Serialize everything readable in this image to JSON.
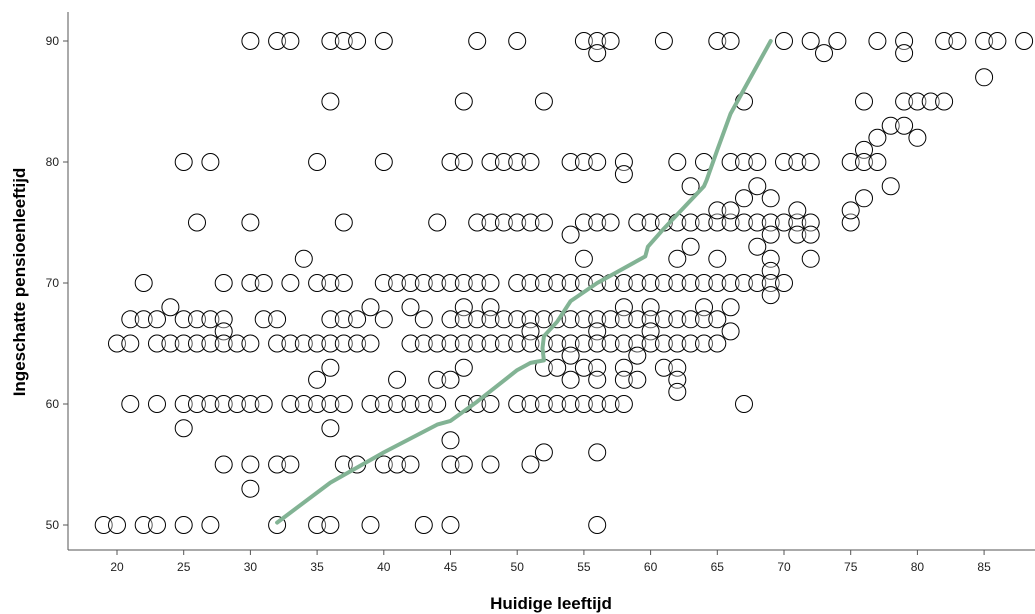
{
  "chart_data": {
    "type": "scatter",
    "title": "",
    "xlabel": "Huidige leeftijd",
    "ylabel": "Ingeschatte pensioenleeftijd",
    "xlim": [
      15,
      88
    ],
    "ylim": [
      48.5,
      92.5
    ],
    "xticks": [
      20,
      25,
      30,
      35,
      40,
      45,
      50,
      55,
      60,
      65,
      70,
      75,
      80,
      85
    ],
    "yticks": [
      50,
      60,
      70,
      80,
      90
    ],
    "grid": false,
    "legend": "none",
    "marker_color": "#000000",
    "fit_line_color": "#82b394",
    "points": [
      [
        30,
        90
      ],
      [
        32,
        90
      ],
      [
        33,
        90
      ],
      [
        36,
        90
      ],
      [
        37,
        90
      ],
      [
        38,
        90
      ],
      [
        40,
        90
      ],
      [
        47,
        90
      ],
      [
        50,
        90
      ],
      [
        55,
        90
      ],
      [
        56,
        90
      ],
      [
        57,
        90
      ],
      [
        61,
        90
      ],
      [
        65,
        90
      ],
      [
        66,
        90
      ],
      [
        70,
        90
      ],
      [
        72,
        90
      ],
      [
        74,
        90
      ],
      [
        77,
        90
      ],
      [
        79,
        90
      ],
      [
        82,
        90
      ],
      [
        83,
        90
      ],
      [
        85,
        90
      ],
      [
        86,
        90
      ],
      [
        88,
        90
      ],
      [
        56,
        89
      ],
      [
        73,
        89
      ],
      [
        79,
        89
      ],
      [
        85,
        87
      ],
      [
        36,
        85
      ],
      [
        46,
        85
      ],
      [
        52,
        85
      ],
      [
        67,
        85
      ],
      [
        76,
        85
      ],
      [
        79,
        85
      ],
      [
        80,
        85
      ],
      [
        81,
        85
      ],
      [
        82,
        85
      ],
      [
        78,
        83
      ],
      [
        79,
        83
      ],
      [
        77,
        82
      ],
      [
        80,
        82
      ],
      [
        76,
        81
      ],
      [
        25,
        80
      ],
      [
        27,
        80
      ],
      [
        35,
        80
      ],
      [
        40,
        80
      ],
      [
        45,
        80
      ],
      [
        46,
        80
      ],
      [
        48,
        80
      ],
      [
        49,
        80
      ],
      [
        50,
        80
      ],
      [
        51,
        80
      ],
      [
        54,
        80
      ],
      [
        55,
        80
      ],
      [
        56,
        80
      ],
      [
        58,
        80
      ],
      [
        62,
        80
      ],
      [
        64,
        80
      ],
      [
        66,
        80
      ],
      [
        67,
        80
      ],
      [
        68,
        80
      ],
      [
        70,
        80
      ],
      [
        71,
        80
      ],
      [
        72,
        80
      ],
      [
        75,
        80
      ],
      [
        76,
        80
      ],
      [
        77,
        80
      ],
      [
        58,
        79
      ],
      [
        63,
        78
      ],
      [
        68,
        78
      ],
      [
        78,
        78
      ],
      [
        67,
        77
      ],
      [
        69,
        77
      ],
      [
        76,
        77
      ],
      [
        26,
        75
      ],
      [
        30,
        75
      ],
      [
        37,
        75
      ],
      [
        44,
        75
      ],
      [
        47,
        75
      ],
      [
        48,
        75
      ],
      [
        49,
        75
      ],
      [
        50,
        75
      ],
      [
        51,
        75
      ],
      [
        52,
        75
      ],
      [
        55,
        75
      ],
      [
        56,
        75
      ],
      [
        57,
        75
      ],
      [
        59,
        75
      ],
      [
        60,
        75
      ],
      [
        61,
        75
      ],
      [
        62,
        75
      ],
      [
        63,
        75
      ],
      [
        64,
        75
      ],
      [
        65,
        75
      ],
      [
        66,
        75
      ],
      [
        67,
        75
      ],
      [
        68,
        75
      ],
      [
        69,
        75
      ],
      [
        70,
        75
      ],
      [
        71,
        75
      ],
      [
        72,
        75
      ],
      [
        75,
        75
      ],
      [
        65,
        76
      ],
      [
        66,
        76
      ],
      [
        71,
        76
      ],
      [
        75,
        76
      ],
      [
        54,
        74
      ],
      [
        69,
        74
      ],
      [
        71,
        74
      ],
      [
        72,
        74
      ],
      [
        63,
        73
      ],
      [
        68,
        73
      ],
      [
        55,
        72
      ],
      [
        34,
        72
      ],
      [
        62,
        72
      ],
      [
        65,
        72
      ],
      [
        69,
        72
      ],
      [
        72,
        72
      ],
      [
        69,
        71
      ],
      [
        22,
        70
      ],
      [
        28,
        70
      ],
      [
        30,
        70
      ],
      [
        31,
        70
      ],
      [
        33,
        70
      ],
      [
        35,
        70
      ],
      [
        36,
        70
      ],
      [
        37,
        70
      ],
      [
        40,
        70
      ],
      [
        41,
        70
      ],
      [
        42,
        70
      ],
      [
        43,
        70
      ],
      [
        44,
        70
      ],
      [
        45,
        70
      ],
      [
        46,
        70
      ],
      [
        47,
        70
      ],
      [
        48,
        70
      ],
      [
        50,
        70
      ],
      [
        51,
        70
      ],
      [
        52,
        70
      ],
      [
        53,
        70
      ],
      [
        54,
        70
      ],
      [
        55,
        70
      ],
      [
        56,
        70
      ],
      [
        57,
        70
      ],
      [
        58,
        70
      ],
      [
        59,
        70
      ],
      [
        60,
        70
      ],
      [
        61,
        70
      ],
      [
        62,
        70
      ],
      [
        63,
        70
      ],
      [
        64,
        70
      ],
      [
        65,
        70
      ],
      [
        66,
        70
      ],
      [
        67,
        70
      ],
      [
        68,
        70
      ],
      [
        69,
        70
      ],
      [
        70,
        70
      ],
      [
        69,
        69
      ],
      [
        24,
        68
      ],
      [
        39,
        68
      ],
      [
        42,
        68
      ],
      [
        46,
        68
      ],
      [
        48,
        68
      ],
      [
        58,
        68
      ],
      [
        60,
        68
      ],
      [
        64,
        68
      ],
      [
        66,
        68
      ],
      [
        21,
        67
      ],
      [
        22,
        67
      ],
      [
        23,
        67
      ],
      [
        25,
        67
      ],
      [
        26,
        67
      ],
      [
        27,
        67
      ],
      [
        28,
        67
      ],
      [
        31,
        67
      ],
      [
        32,
        67
      ],
      [
        36,
        67
      ],
      [
        37,
        67
      ],
      [
        38,
        67
      ],
      [
        40,
        67
      ],
      [
        43,
        67
      ],
      [
        45,
        67
      ],
      [
        46,
        67
      ],
      [
        47,
        67
      ],
      [
        48,
        67
      ],
      [
        49,
        67
      ],
      [
        50,
        67
      ],
      [
        51,
        67
      ],
      [
        52,
        67
      ],
      [
        53,
        67
      ],
      [
        54,
        67
      ],
      [
        55,
        67
      ],
      [
        56,
        67
      ],
      [
        57,
        67
      ],
      [
        58,
        67
      ],
      [
        59,
        67
      ],
      [
        60,
        67
      ],
      [
        61,
        67
      ],
      [
        62,
        67
      ],
      [
        63,
        67
      ],
      [
        64,
        67
      ],
      [
        65,
        67
      ],
      [
        28,
        66
      ],
      [
        51,
        66
      ],
      [
        56,
        66
      ],
      [
        60,
        66
      ],
      [
        66,
        66
      ],
      [
        20,
        65
      ],
      [
        21,
        65
      ],
      [
        23,
        65
      ],
      [
        24,
        65
      ],
      [
        25,
        65
      ],
      [
        26,
        65
      ],
      [
        27,
        65
      ],
      [
        28,
        65
      ],
      [
        29,
        65
      ],
      [
        30,
        65
      ],
      [
        32,
        65
      ],
      [
        33,
        65
      ],
      [
        34,
        65
      ],
      [
        35,
        65
      ],
      [
        36,
        65
      ],
      [
        37,
        65
      ],
      [
        38,
        65
      ],
      [
        39,
        65
      ],
      [
        42,
        65
      ],
      [
        43,
        65
      ],
      [
        44,
        65
      ],
      [
        45,
        65
      ],
      [
        46,
        65
      ],
      [
        47,
        65
      ],
      [
        48,
        65
      ],
      [
        49,
        65
      ],
      [
        50,
        65
      ],
      [
        51,
        65
      ],
      [
        52,
        65
      ],
      [
        53,
        65
      ],
      [
        54,
        65
      ],
      [
        55,
        65
      ],
      [
        56,
        65
      ],
      [
        57,
        65
      ],
      [
        58,
        65
      ],
      [
        59,
        65
      ],
      [
        60,
        65
      ],
      [
        61,
        65
      ],
      [
        62,
        65
      ],
      [
        63,
        65
      ],
      [
        64,
        65
      ],
      [
        65,
        65
      ],
      [
        54,
        64
      ],
      [
        59,
        64
      ],
      [
        36,
        63
      ],
      [
        46,
        63
      ],
      [
        52,
        63
      ],
      [
        53,
        63
      ],
      [
        55,
        63
      ],
      [
        56,
        63
      ],
      [
        58,
        63
      ],
      [
        61,
        63
      ],
      [
        62,
        63
      ],
      [
        35,
        62
      ],
      [
        41,
        62
      ],
      [
        44,
        62
      ],
      [
        45,
        62
      ],
      [
        54,
        62
      ],
      [
        56,
        62
      ],
      [
        58,
        62
      ],
      [
        59,
        62
      ],
      [
        62,
        62
      ],
      [
        62,
        61
      ],
      [
        21,
        60
      ],
      [
        23,
        60
      ],
      [
        25,
        60
      ],
      [
        26,
        60
      ],
      [
        27,
        60
      ],
      [
        28,
        60
      ],
      [
        29,
        60
      ],
      [
        30,
        60
      ],
      [
        31,
        60
      ],
      [
        33,
        60
      ],
      [
        34,
        60
      ],
      [
        35,
        60
      ],
      [
        36,
        60
      ],
      [
        37,
        60
      ],
      [
        39,
        60
      ],
      [
        40,
        60
      ],
      [
        41,
        60
      ],
      [
        42,
        60
      ],
      [
        43,
        60
      ],
      [
        44,
        60
      ],
      [
        46,
        60
      ],
      [
        47,
        60
      ],
      [
        48,
        60
      ],
      [
        50,
        60
      ],
      [
        51,
        60
      ],
      [
        52,
        60
      ],
      [
        53,
        60
      ],
      [
        54,
        60
      ],
      [
        55,
        60
      ],
      [
        56,
        60
      ],
      [
        57,
        60
      ],
      [
        58,
        60
      ],
      [
        67,
        60
      ],
      [
        25,
        58
      ],
      [
        36,
        58
      ],
      [
        45,
        57
      ],
      [
        52,
        56
      ],
      [
        56,
        56
      ],
      [
        28,
        55
      ],
      [
        30,
        55
      ],
      [
        32,
        55
      ],
      [
        33,
        55
      ],
      [
        37,
        55
      ],
      [
        38,
        55
      ],
      [
        40,
        55
      ],
      [
        41,
        55
      ],
      [
        42,
        55
      ],
      [
        45,
        55
      ],
      [
        46,
        55
      ],
      [
        48,
        55
      ],
      [
        51,
        55
      ],
      [
        30,
        53
      ],
      [
        19,
        50
      ],
      [
        20,
        50
      ],
      [
        22,
        50
      ],
      [
        23,
        50
      ],
      [
        25,
        50
      ],
      [
        27,
        50
      ],
      [
        32,
        50
      ],
      [
        35,
        50
      ],
      [
        36,
        50
      ],
      [
        39,
        50
      ],
      [
        43,
        50
      ],
      [
        45,
        50
      ],
      [
        56,
        50
      ]
    ],
    "fit_line": [
      [
        32,
        50.2
      ],
      [
        36,
        53.5
      ],
      [
        40,
        56
      ],
      [
        44,
        58.3
      ],
      [
        45,
        58.6
      ],
      [
        47,
        60.2
      ],
      [
        50,
        62.8
      ],
      [
        51,
        63.4
      ],
      [
        52,
        63.6
      ],
      [
        51.9,
        64.6
      ],
      [
        52,
        65.6
      ],
      [
        53,
        66.8
      ],
      [
        54,
        68.5
      ],
      [
        56,
        70
      ],
      [
        59.6,
        72.2
      ],
      [
        59.8,
        73
      ],
      [
        61,
        74.5
      ],
      [
        64,
        78
      ],
      [
        64.2,
        78.5
      ],
      [
        65,
        81
      ],
      [
        66,
        84
      ],
      [
        69,
        90
      ]
    ]
  }
}
